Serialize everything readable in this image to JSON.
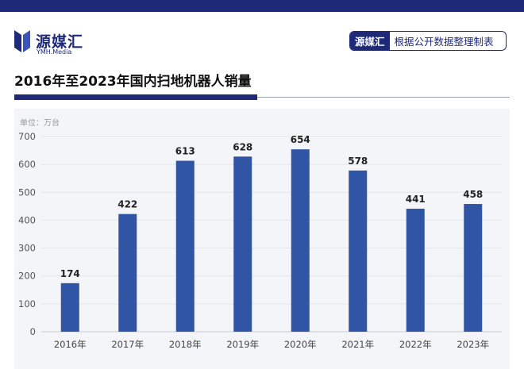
{
  "brand": {
    "name": "源媒汇",
    "sub": "YMH.Media"
  },
  "source": {
    "tag": "源媒汇",
    "text": "根据公开数据整理制表"
  },
  "chart_data": {
    "type": "bar",
    "title": "2016年至2023年国内扫地机器人销量",
    "unit_label": "单位：万台",
    "categories": [
      "2016年",
      "2017年",
      "2018年",
      "2019年",
      "2020年",
      "2021年",
      "2022年",
      "2023年"
    ],
    "values": [
      174,
      422,
      613,
      628,
      654,
      578,
      441,
      458
    ],
    "ylim": [
      0,
      700
    ],
    "yticks": [
      0,
      100,
      200,
      300,
      400,
      500,
      600,
      700
    ],
    "grid": true,
    "bar_color": "#2f55a4",
    "data_labels": true
  },
  "colors": {
    "brand": "#1e2a78",
    "bar": "#2f55a4"
  }
}
